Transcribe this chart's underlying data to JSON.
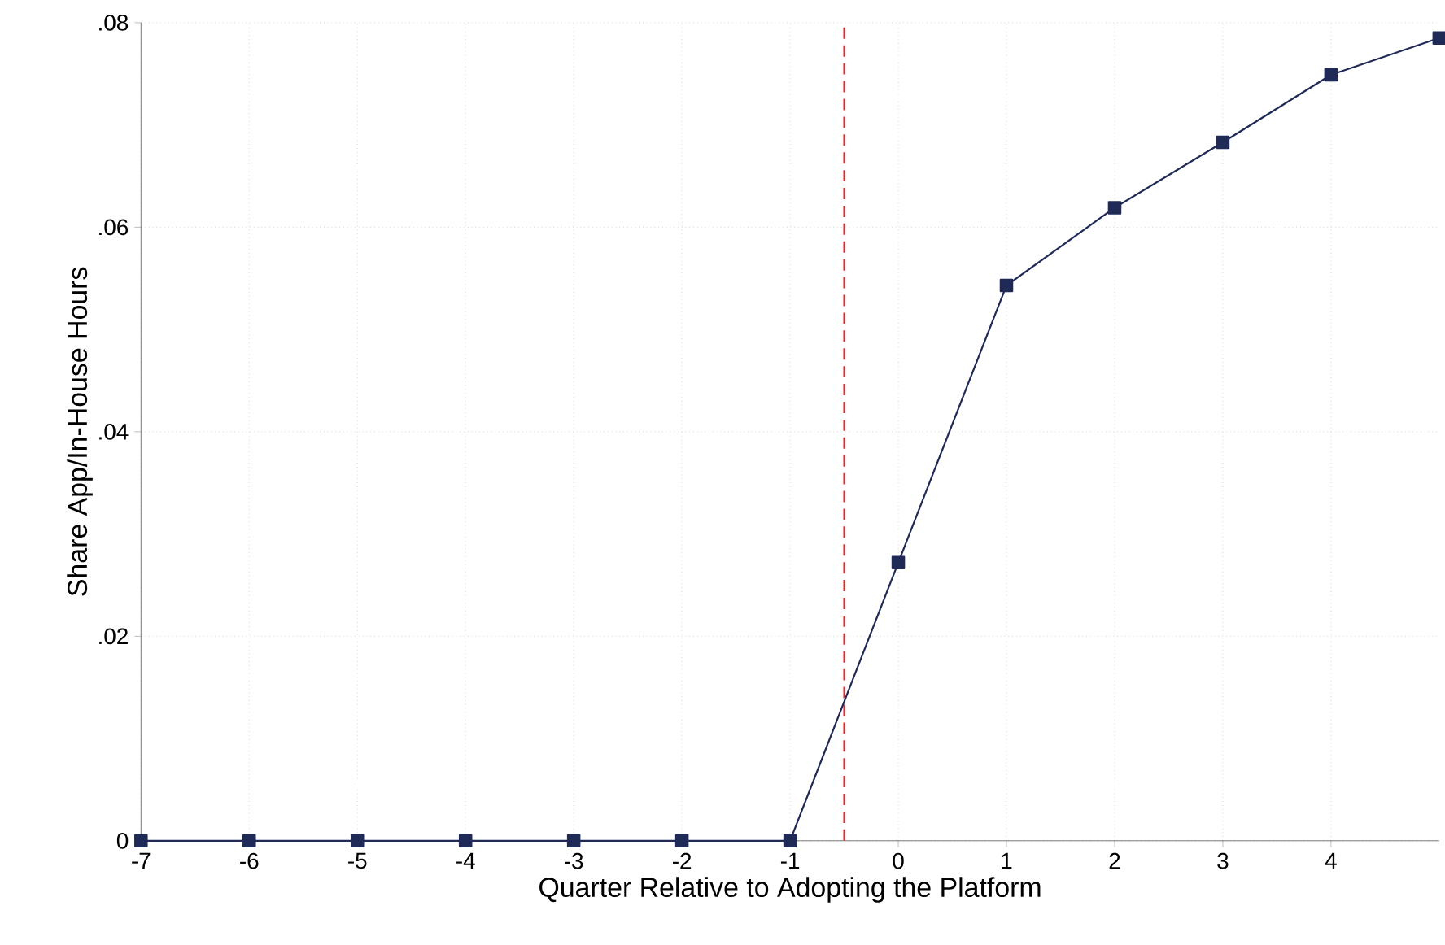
{
  "chart_data": {
    "type": "line",
    "xlabel": "Quarter Relative to Adopting the Platform",
    "ylabel": "Share App/In-House Hours",
    "x": [
      -7,
      -6,
      -5,
      -4,
      -3,
      -2,
      -1,
      0,
      1,
      2,
      3,
      4,
      5
    ],
    "series": [
      {
        "color": "#1f2b56",
        "values": [
          0,
          0,
          0,
          0,
          0,
          0,
          0,
          0.0272,
          0.0543,
          0.0619,
          0.0683,
          0.0749,
          0.0785
        ]
      }
    ],
    "xlim": [
      -7,
      5
    ],
    "ylim": [
      0,
      0.08
    ],
    "xticks": [
      -7,
      -6,
      -5,
      -4,
      -3,
      -2,
      -1,
      0,
      1,
      2,
      3,
      4
    ],
    "yticks": [
      0,
      {
        "value": 0.02,
        "label": ".02"
      },
      {
        "value": 0.04,
        "label": ".04"
      },
      {
        "value": 0.06,
        "label": ".06"
      },
      {
        "value": 0.08,
        "label": ".08"
      }
    ],
    "ref_lines": [
      {
        "axis": "x",
        "value": -0.5,
        "color": "#e8282b",
        "line_style": "dashed"
      }
    ],
    "grid": true,
    "marker": "square",
    "line_style": "solid"
  }
}
